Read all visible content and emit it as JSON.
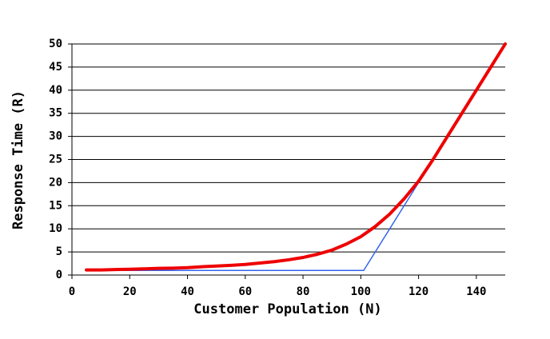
{
  "chart_data": {
    "type": "line",
    "xlabel": "Customer Population (N)",
    "ylabel": "Response Time (R)",
    "xlim": [
      0,
      150
    ],
    "xticks": [
      0,
      20,
      40,
      60,
      80,
      100,
      120,
      140
    ],
    "ylim": [
      0,
      50
    ],
    "yticks": [
      0,
      5,
      10,
      15,
      20,
      25,
      30,
      35,
      40,
      45,
      50
    ],
    "grid": true,
    "series": [
      {
        "color": "#3366ee",
        "line_width": 1.5,
        "x": [
          5,
          101,
          150
        ],
        "values": [
          1,
          1,
          50
        ]
      },
      {
        "color": "#ee0000",
        "line_width": 4,
        "x": [
          5,
          10,
          15,
          20,
          25,
          30,
          35,
          40,
          45,
          50,
          55,
          60,
          65,
          70,
          75,
          80,
          85,
          90,
          95,
          100,
          105,
          110,
          115,
          120,
          125,
          130,
          135,
          140,
          145,
          150
        ],
        "values": [
          1.1,
          1.1,
          1.2,
          1.25,
          1.35,
          1.45,
          1.5,
          1.6,
          1.8,
          1.95,
          2.1,
          2.3,
          2.6,
          2.9,
          3.3,
          3.8,
          4.5,
          5.4,
          6.7,
          8.3,
          10.5,
          13.2,
          16.5,
          20.3,
          25,
          30,
          35,
          40,
          45,
          50
        ]
      }
    ]
  }
}
